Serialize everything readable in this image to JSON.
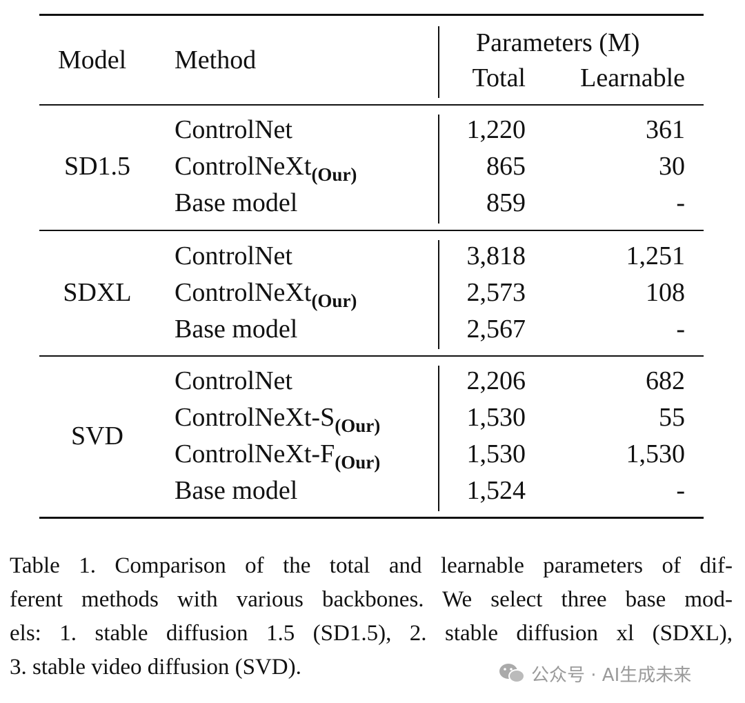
{
  "table": {
    "header": {
      "model": "Model",
      "method": "Method",
      "params": "Parameters (M)",
      "total": "Total",
      "learnable": "Learnable"
    },
    "groups": [
      {
        "model": "SD1.5",
        "rows": [
          {
            "method": "ControlNet",
            "total": "1,220",
            "learnable": "361"
          },
          {
            "method": "ControlNeXt",
            "subscript": "(Our)",
            "total": "865",
            "learnable": "30"
          },
          {
            "method": "Base model",
            "total": "859",
            "learnable": "-"
          }
        ]
      },
      {
        "model": "SDXL",
        "rows": [
          {
            "method": "ControlNet",
            "total": "3,818",
            "learnable": "1,251"
          },
          {
            "method": "ControlNeXt",
            "subscript": "(Our)",
            "total": "2,573",
            "learnable": "108"
          },
          {
            "method": "Base model",
            "total": "2,567",
            "learnable": "-"
          }
        ]
      },
      {
        "model": "SVD",
        "rows": [
          {
            "method": "ControlNet",
            "total": "2,206",
            "learnable": "682"
          },
          {
            "method": "ControlNeXt-S",
            "subscript": "(Our)",
            "total": "1,530",
            "learnable": "55"
          },
          {
            "method": "ControlNeXt-F",
            "subscript": "(Our)",
            "total": "1,530",
            "learnable": "1,530"
          },
          {
            "method": "Base model",
            "total": "1,524",
            "learnable": "-"
          }
        ]
      }
    ]
  },
  "caption": [
    "Table 1. Comparison of the total and learnable parameters of dif-",
    "ferent methods with various backbones. We select three base mod-",
    "els: 1. stable diffusion 1.5 (SD1.5), 2. stable diffusion xl (SDXL),",
    "3. stable video diffusion (SVD)."
  ],
  "watermark": "公众号 · AI生成未来"
}
